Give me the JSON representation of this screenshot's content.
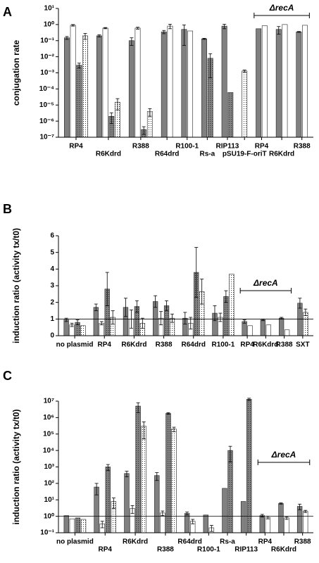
{
  "chart_data": [
    {
      "type": "bar",
      "label": "A",
      "y_label": "conjugation rate",
      "log_y": true,
      "categories": [
        "RP4",
        "R6Kdrd",
        "R388",
        "R64drd",
        "R100-1",
        "Rs-a",
        "RIP113",
        "pSU19-F-oriT",
        "RP4",
        "R6Kdrd",
        "R388"
      ],
      "annotation": "ΔrecA",
      "ylim": [
        1e-07,
        10
      ],
      "yticks": [
        {
          "value": 10,
          "label": "10¹"
        },
        {
          "value": 1,
          "label": "10⁰"
        },
        {
          "value": 0.1,
          "label": "10⁻¹"
        },
        {
          "value": 0.01,
          "label": "10⁻²"
        },
        {
          "value": 0.001,
          "label": "10⁻³"
        },
        {
          "value": 0.0001,
          "label": "10⁻⁴"
        },
        {
          "value": 1e-05,
          "label": "10⁻⁵"
        },
        {
          "value": 1e-06,
          "label": "10⁻⁶"
        },
        {
          "value": 1e-07,
          "label": "10⁻⁷"
        }
      ],
      "series": [
        {
          "color": "#808080",
          "pattern": false,
          "values": [
            0.15,
            0.2,
            0.1,
            0.35,
            0.5,
            0.13,
            0.8,
            null,
            0.55,
            0.5,
            0.35
          ],
          "errors": [
            0.03,
            0.03,
            0.05,
            0.08,
            0.45,
            0.01,
            0.25,
            null,
            null,
            0.25,
            0.02
          ]
        },
        {
          "color": "#ffffff",
          "pattern": false,
          "values": [
            0.9,
            0.6,
            0.6,
            0.8,
            0.4,
            null,
            null,
            null,
            0.85,
            1,
            0.9
          ],
          "errors": [
            0.1,
            0.05,
            0.08,
            0.25,
            null,
            null,
            null,
            null,
            null,
            null,
            null
          ]
        },
        {
          "color": "#808080",
          "pattern": true,
          "values": [
            0.003,
            2e-06,
            3e-07,
            null,
            null,
            0.008,
            6e-05,
            null,
            null,
            null,
            null
          ],
          "errors": [
            0.001,
            1.3e-06,
            1.5e-07,
            null,
            null,
            0.0075,
            null,
            null,
            null,
            null,
            null
          ]
        },
        {
          "color": "#ffffff",
          "pattern": true,
          "values": [
            0.2,
            1.5e-05,
            4e-06,
            null,
            null,
            null,
            null,
            0.0013,
            null,
            null,
            null
          ],
          "errors": [
            0.08,
            1e-05,
            2e-06,
            null,
            null,
            null,
            null,
            0.0002,
            null,
            null,
            null
          ]
        }
      ]
    },
    {
      "type": "bar",
      "label": "B",
      "y_label": "induction ratio (activity tx/t0)",
      "log_y": false,
      "categories": [
        "no plasmid",
        "RP4",
        "R6Kdrd",
        "R388",
        "R64drd",
        "R100-1",
        "RP4",
        "R6Kdrd",
        "R388",
        "SXT"
      ],
      "annotation": "ΔrecA",
      "reference_line": 1,
      "ylim": [
        0,
        6
      ],
      "yticks": [
        0,
        1,
        2,
        3,
        4,
        5,
        6
      ],
      "series": [
        {
          "color": "#808080",
          "pattern": false,
          "values": [
            0.95,
            1.7,
            1.7,
            2.05,
            1.05,
            1.35,
            0.85,
            0.95,
            1.05,
            1.95
          ],
          "errors": [
            0.1,
            0.2,
            0.55,
            0.35,
            0.35,
            0.45,
            0.1,
            0.05,
            0.05,
            0.3
          ]
        },
        {
          "color": "#ffffff",
          "pattern": false,
          "values": [
            0.65,
            0.75,
            1.0,
            1.05,
            0.75,
            1.1,
            0.6,
            0.65,
            0.35,
            null
          ],
          "errors": [
            0.1,
            0.1,
            0.55,
            0.4,
            0.35,
            0.25,
            null,
            null,
            null,
            null
          ]
        },
        {
          "color": "#808080",
          "pattern": true,
          "values": [
            0.8,
            2.8,
            1.75,
            1.8,
            3.8,
            2.35,
            null,
            null,
            null,
            null
          ],
          "errors": [
            0.15,
            1.0,
            0.35,
            0.3,
            1.5,
            0.35,
            null,
            null,
            null,
            null
          ]
        },
        {
          "color": "#ffffff",
          "pattern": true,
          "values": [
            0.6,
            1.1,
            0.75,
            1.05,
            2.65,
            3.7,
            null,
            null,
            null,
            1.4
          ],
          "errors": [
            null,
            0.4,
            0.3,
            0.25,
            0.75,
            null,
            null,
            null,
            null,
            0.2
          ]
        }
      ]
    },
    {
      "type": "bar",
      "label": "C",
      "y_label": "induction ratio (activity tx/t0)",
      "log_y": true,
      "categories": [
        "no plasmid",
        "RP4",
        "R6Kdrd",
        "R388",
        "R64drd",
        "R100-1",
        "Rs-a",
        "RIP113",
        "RP4",
        "R6Kdrd",
        "R388"
      ],
      "annotation": "ΔrecA",
      "reference_line": 1,
      "ylim": [
        0.1,
        10000000.0
      ],
      "yticks": [
        {
          "value": 10000000.0,
          "label": "10⁷"
        },
        {
          "value": 1000000.0,
          "label": "10⁶"
        },
        {
          "value": 100000.0,
          "label": "10⁵"
        },
        {
          "value": 10000.0,
          "label": "10⁴"
        },
        {
          "value": 1000,
          "label": "10³"
        },
        {
          "value": 100,
          "label": "10²"
        },
        {
          "value": 10,
          "label": "10¹"
        },
        {
          "value": 1,
          "label": "10⁰"
        },
        {
          "value": 0.1,
          "label": "10⁻¹"
        }
      ],
      "series": [
        {
          "color": "#808080",
          "pattern": false,
          "values": [
            1.1,
            60,
            400,
            300,
            1.5,
            1.2,
            50,
            8,
            1.1,
            6,
            4
          ],
          "errors": [
            null,
            40,
            150,
            150,
            0.3,
            null,
            null,
            null,
            0.2,
            0.5,
            1.5
          ]
        },
        {
          "color": "#ffffff",
          "pattern": false,
          "values": [
            0.7,
            0.35,
            3,
            1.6,
            0.5,
            0.2,
            null,
            null,
            0.85,
            0.8,
            2
          ],
          "errors": [
            null,
            0.15,
            1.5,
            0.5,
            0.15,
            0.08,
            null,
            null,
            0.15,
            0.15,
            0.3
          ]
        },
        {
          "color": "#808080",
          "pattern": true,
          "values": [
            0.8,
            1000,
            5000000,
            1800000,
            null,
            null,
            10000,
            13000000,
            null,
            null,
            null
          ],
          "errors": [
            null,
            400,
            3000000,
            200000,
            null,
            null,
            8000,
            2000000,
            null,
            null,
            null
          ]
        },
        {
          "color": "#ffffff",
          "pattern": true,
          "values": [
            0.65,
            8,
            300000,
            200000,
            null,
            null,
            null,
            null,
            null,
            null,
            null
          ],
          "errors": [
            null,
            5,
            250000,
            60000,
            null,
            null,
            null,
            null,
            null,
            null,
            null
          ]
        }
      ]
    }
  ]
}
